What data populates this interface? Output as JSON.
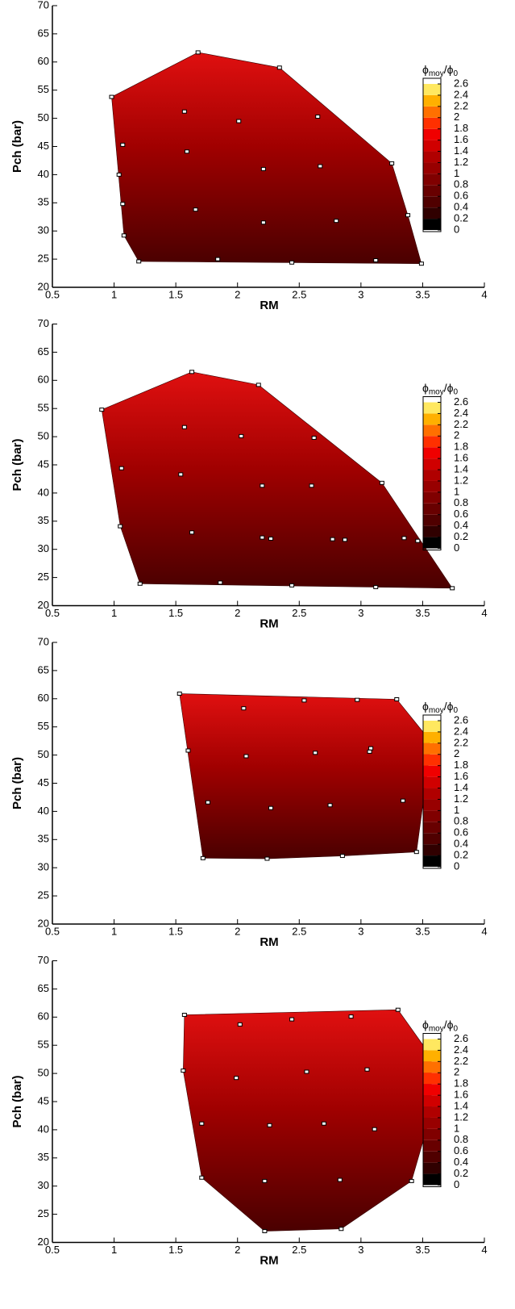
{
  "chart_data": [
    {
      "type": "scatter",
      "xlabel": "RM",
      "ylabel": "Pch (bar)",
      "x": [
        0.98,
        1.68,
        2.34,
        2.65,
        3.25,
        3.38,
        3.49,
        3.12,
        2.44,
        1.84,
        1.2,
        1.08,
        1.07,
        1.04,
        1.07,
        1.57,
        2.01,
        1.59,
        2.21,
        2.67,
        1.66,
        2.21,
        2.8
      ],
      "y": [
        53.8,
        61.7,
        59,
        50.3,
        42,
        32.8,
        24.2,
        24.8,
        24.4,
        25,
        24.6,
        29.2,
        34.8,
        40,
        45.3,
        51.2,
        49.5,
        44.1,
        41,
        41.5,
        33.8,
        31.5,
        31.8
      ],
      "xlim": [
        0.5,
        4
      ],
      "ylim": [
        20,
        70
      ],
      "xticks": [
        0.5,
        1,
        1.5,
        2,
        2.5,
        3,
        3.5,
        4
      ],
      "yticks": [
        20,
        25,
        30,
        35,
        40,
        45,
        50,
        55,
        60,
        65,
        70
      ],
      "colorbar": {
        "title": {
          "num": "ϕ",
          "num_sub": "moy",
          "den": "/ϕ",
          "den_sub": "0"
        },
        "ticks": [
          0,
          0.2,
          0.4,
          0.6,
          0.8,
          1,
          1.2,
          1.4,
          1.6,
          1.8,
          2,
          2.2,
          2.4,
          2.6
        ],
        "colors": [
          "#000000",
          "#300000",
          "#500000",
          "#680000",
          "#800000",
          "#980000",
          "#b00000",
          "#d00000",
          "#f00000",
          "#ff3000",
          "#ff7000",
          "#ffb000",
          "#ffe860"
        ]
      }
    },
    {
      "type": "scatter",
      "xlabel": "RM",
      "ylabel": "Pch (bar)",
      "x": [
        0.9,
        1.63,
        2.17,
        2.62,
        3.17,
        3.46,
        3.74,
        3.12,
        2.44,
        1.86,
        1.21,
        1.05,
        1.06,
        1.57,
        2.03,
        1.54,
        2.2,
        2.6,
        1.63,
        2.2,
        2.27,
        2.77,
        2.87,
        3.35
      ],
      "y": [
        54.8,
        61.5,
        59.2,
        49.8,
        41.8,
        31.5,
        23.1,
        23.3,
        23.6,
        24.1,
        23.9,
        34.1,
        44.4,
        51.7,
        50.1,
        43.3,
        41.3,
        41.3,
        33,
        32.1,
        31.9,
        31.8,
        31.7,
        32
      ],
      "xlim": [
        0.5,
        4
      ],
      "ylim": [
        20,
        70
      ],
      "xticks": [
        0.5,
        1,
        1.5,
        2,
        2.5,
        3,
        3.5,
        4
      ],
      "yticks": [
        20,
        25,
        30,
        35,
        40,
        45,
        50,
        55,
        60,
        65,
        70
      ],
      "colorbar": {
        "title": {
          "num": "ϕ",
          "num_sub": "moy",
          "den": "/ϕ",
          "den_sub": "0"
        },
        "ticks": [
          0,
          0.2,
          0.4,
          0.6,
          0.8,
          1,
          1.2,
          1.4,
          1.6,
          1.8,
          2,
          2.2,
          2.4,
          2.6
        ],
        "colors": [
          "#000000",
          "#300000",
          "#500000",
          "#680000",
          "#800000",
          "#980000",
          "#b00000",
          "#d00000",
          "#f00000",
          "#ff3000",
          "#ff7000",
          "#ffb000",
          "#ffe860"
        ]
      }
    },
    {
      "type": "scatter",
      "xlabel": "RM",
      "ylabel": "Pch (bar)",
      "x": [
        1.53,
        2.05,
        2.54,
        2.97,
        3.29,
        3.57,
        3.34,
        3.45,
        2.85,
        2.24,
        1.72,
        1.76,
        1.6,
        2.07,
        2.63,
        3.08,
        3.07,
        2.27,
        2.75
      ],
      "y": [
        60.9,
        58.3,
        59.7,
        59.8,
        59.9,
        52.3,
        41.9,
        32.8,
        32.1,
        31.6,
        31.7,
        41.6,
        50.8,
        49.8,
        50.4,
        51.2,
        50.6,
        40.6,
        41.1
      ],
      "xlim": [
        0.5,
        4
      ],
      "ylim": [
        20,
        70
      ],
      "xticks": [
        0.5,
        1,
        1.5,
        2,
        2.5,
        3,
        3.5,
        4
      ],
      "yticks": [
        20,
        25,
        30,
        35,
        40,
        45,
        50,
        55,
        60,
        65,
        70
      ],
      "colorbar": {
        "title": {
          "num": "ϕ",
          "num_sub": "moy",
          "den": "/ϕ",
          "den_sub": "0"
        },
        "ticks": [
          0,
          0.2,
          0.4,
          0.6,
          0.8,
          1,
          1.2,
          1.4,
          1.6,
          1.8,
          2,
          2.2,
          2.4,
          2.6
        ],
        "colors": [
          "#000000",
          "#300000",
          "#500000",
          "#680000",
          "#800000",
          "#980000",
          "#b00000",
          "#d00000",
          "#f00000",
          "#ff3000",
          "#ff7000",
          "#ffb000",
          "#ffe860"
        ]
      }
    },
    {
      "type": "scatter",
      "xlabel": "RM",
      "ylabel": "Pch (bar)",
      "x": [
        1.57,
        2.02,
        2.44,
        2.92,
        3.3,
        3.57,
        3.57,
        3.41,
        2.84,
        2.22,
        1.71,
        1.71,
        1.56,
        1.99,
        2.56,
        3.05,
        2.26,
        2.7,
        3.11,
        2.22,
        2.83
      ],
      "y": [
        60.4,
        58.7,
        59.6,
        60.1,
        61.3,
        53,
        43,
        30.9,
        22.4,
        22,
        31.5,
        41.1,
        50.5,
        49.2,
        50.3,
        50.7,
        40.8,
        41.1,
        40.1,
        30.9,
        31.1
      ],
      "xlim": [
        0.5,
        4
      ],
      "ylim": [
        20,
        70
      ],
      "xticks": [
        0.5,
        1,
        1.5,
        2,
        2.5,
        3,
        3.5,
        4
      ],
      "yticks": [
        20,
        25,
        30,
        35,
        40,
        45,
        50,
        55,
        60,
        65,
        70
      ],
      "colorbar": {
        "title": {
          "num": "ϕ",
          "num_sub": "moy",
          "den": "/ϕ",
          "den_sub": "0"
        },
        "ticks": [
          0,
          0.2,
          0.4,
          0.6,
          0.8,
          1,
          1.2,
          1.4,
          1.6,
          1.8,
          2,
          2.2,
          2.4,
          2.6
        ],
        "colors": [
          "#000000",
          "#300000",
          "#500000",
          "#680000",
          "#800000",
          "#980000",
          "#b00000",
          "#d00000",
          "#f00000",
          "#ff3000",
          "#ff7000",
          "#ffb000",
          "#ffe860"
        ]
      }
    }
  ]
}
